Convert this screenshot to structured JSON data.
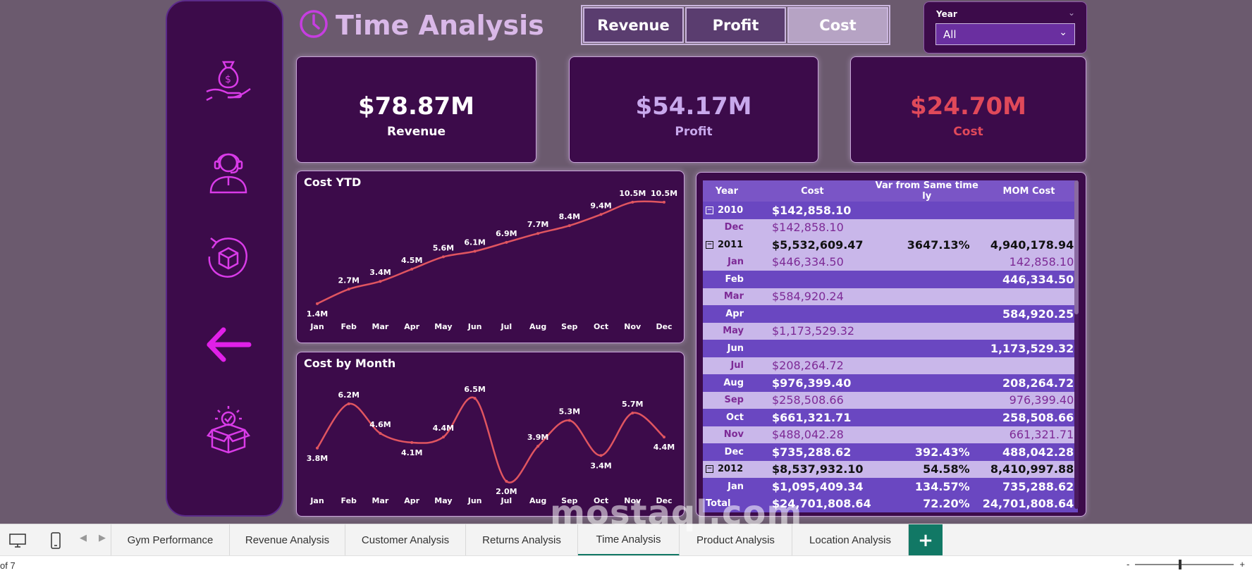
{
  "header": {
    "title": "Time Analysis"
  },
  "toggle": {
    "buttons": [
      "Revenue",
      "Profit",
      "Cost"
    ],
    "active": "Cost"
  },
  "slicer": {
    "label": "Year",
    "value": "All"
  },
  "nav": {
    "icons": [
      "money-bag-icon",
      "support-agent-icon",
      "returns-cycle-icon",
      "back-arrow-icon",
      "product-box-icon"
    ]
  },
  "kpis": [
    {
      "value": "$78.87M",
      "label": "Revenue",
      "color": "#ffffff"
    },
    {
      "value": "$54.17M",
      "label": "Profit",
      "color": "#c8a8ec"
    },
    {
      "value": "$24.70M",
      "label": "Cost",
      "color": "#e0495a"
    }
  ],
  "chart_data": [
    {
      "type": "line",
      "title": "Cost YTD",
      "categories": [
        "Jan",
        "Feb",
        "Mar",
        "Apr",
        "May",
        "Jun",
        "Jul",
        "Aug",
        "Sep",
        "Oct",
        "Nov",
        "Dec"
      ],
      "values": [
        1.4,
        2.7,
        3.4,
        4.5,
        5.6,
        6.1,
        6.9,
        7.7,
        8.4,
        9.4,
        10.5,
        10.5
      ],
      "labels": [
        "1.4M",
        "2.7M",
        "3.4M",
        "4.5M",
        "5.6M",
        "6.1M",
        "6.9M",
        "7.7M",
        "8.4M",
        "9.4M",
        "10.5M",
        "10.5M"
      ],
      "ylim": [
        0,
        11
      ],
      "line_color": "#e05560"
    },
    {
      "type": "line",
      "title": "Cost by Month",
      "categories": [
        "Jan",
        "Feb",
        "Mar",
        "Apr",
        "May",
        "Jun",
        "Jul",
        "Aug",
        "Sep",
        "Oct",
        "Nov",
        "Dec"
      ],
      "values": [
        3.8,
        6.2,
        4.6,
        4.1,
        4.4,
        6.5,
        2.0,
        3.9,
        5.3,
        3.4,
        5.7,
        4.4
      ],
      "labels": [
        "3.8M",
        "6.2M",
        "4.6M",
        "4.1M",
        "4.4M",
        "6.5M",
        "2.0M",
        "3.9M",
        "5.3M",
        "3.4M",
        "5.7M",
        "4.4M"
      ],
      "ylim": [
        1.5,
        7
      ],
      "line_color": "#e05560"
    }
  ],
  "table": {
    "headers": [
      "Year",
      "Cost",
      "Var from Same time ly",
      "MOM Cost"
    ],
    "rows": [
      {
        "kind": "year",
        "year": "2010",
        "cost": "$142,858.10",
        "var": "",
        "mom": ""
      },
      {
        "kind": "light",
        "year": "Dec",
        "cost": "$142,858.10",
        "var": "",
        "mom": ""
      },
      {
        "kind": "year-light",
        "year": "2011",
        "cost": "$5,532,609.47",
        "var": "3647.13%",
        "mom": "4,940,178.94"
      },
      {
        "kind": "light",
        "year": "Jan",
        "cost": "$446,334.50",
        "var": "",
        "mom": "142,858.10"
      },
      {
        "kind": "dark",
        "year": "Feb",
        "cost": "",
        "var": "",
        "mom": "446,334.50"
      },
      {
        "kind": "light",
        "year": "Mar",
        "cost": "$584,920.24",
        "var": "",
        "mom": ""
      },
      {
        "kind": "dark",
        "year": "Apr",
        "cost": "",
        "var": "",
        "mom": "584,920.25"
      },
      {
        "kind": "light",
        "year": "May",
        "cost": "$1,173,529.32",
        "var": "",
        "mom": ""
      },
      {
        "kind": "dark",
        "year": "Jun",
        "cost": "",
        "var": "",
        "mom": "1,173,529.32"
      },
      {
        "kind": "light",
        "year": "Jul",
        "cost": "$208,264.72",
        "var": "",
        "mom": ""
      },
      {
        "kind": "dark",
        "year": "Aug",
        "cost": "$976,399.40",
        "var": "",
        "mom": "208,264.72"
      },
      {
        "kind": "light",
        "year": "Sep",
        "cost": "$258,508.66",
        "var": "",
        "mom": "976,399.40"
      },
      {
        "kind": "dark",
        "year": "Oct",
        "cost": "$661,321.71",
        "var": "",
        "mom": "258,508.66"
      },
      {
        "kind": "light",
        "year": "Nov",
        "cost": "$488,042.28",
        "var": "",
        "mom": "661,321.71"
      },
      {
        "kind": "dark",
        "year": "Dec",
        "cost": "$735,288.62",
        "var": "392.43%",
        "mom": "488,042.28"
      },
      {
        "kind": "year-light",
        "year": "2012",
        "cost": "$8,537,932.10",
        "var": "54.58%",
        "mom": "8,410,997.88"
      },
      {
        "kind": "dark",
        "year": "Jan",
        "cost": "$1,095,409.34",
        "var": "134.57%",
        "mom": "735,288.62"
      },
      {
        "kind": "total",
        "year": "Total",
        "cost": "$24,701,808.64",
        "var": "72.20%",
        "mom": "24,701,808.64"
      }
    ]
  },
  "tabs": {
    "items": [
      "Gym Performance",
      "Revenue Analysis",
      "Customer Analysis",
      "Returns Analysis",
      "Time Analysis",
      "Product Analysis",
      "Location Analysis"
    ],
    "active": "Time Analysis",
    "add_label": "+"
  },
  "status": {
    "page": "of 7"
  },
  "watermark": {
    "text": "mostaql.com"
  }
}
